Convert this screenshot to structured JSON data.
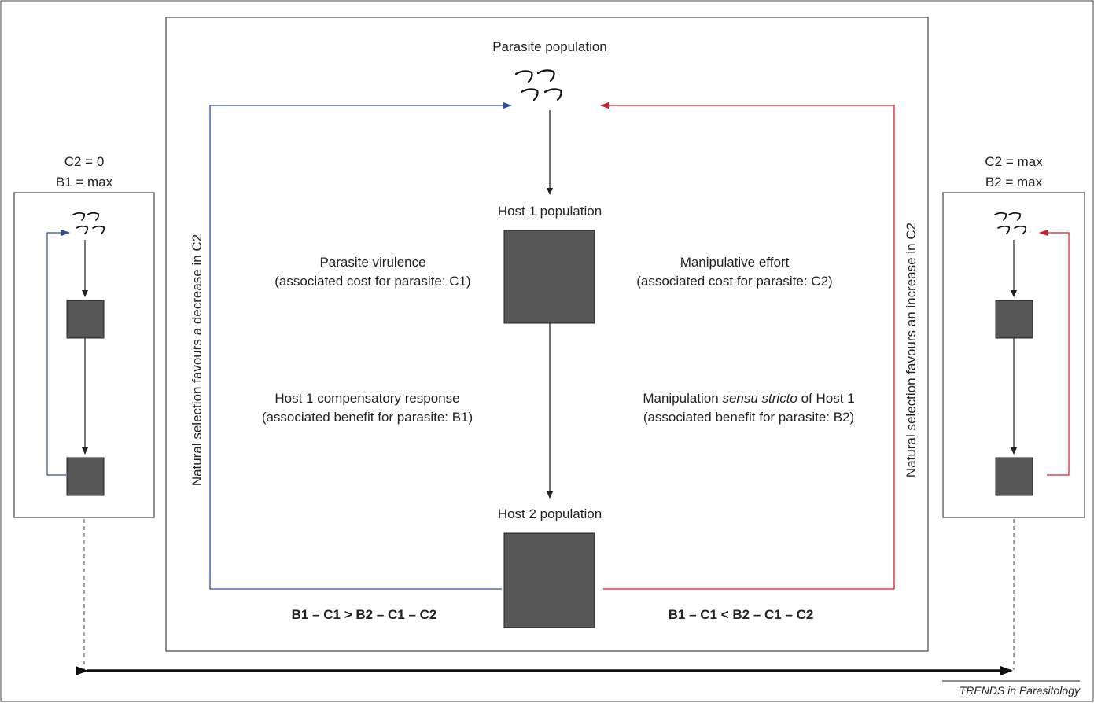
{
  "center": {
    "parasite_label": "Parasite population",
    "host1_label": "Host 1 population",
    "host2_label": "Host 2 population",
    "virulence_line1": "Parasite virulence",
    "virulence_line2": "(associated cost for parasite: C1)",
    "manip_effort_line1": "Manipulative effort",
    "manip_effort_line2": "(associated cost for parasite: C2)",
    "compensatory_line1": "Host 1 compensatory response",
    "compensatory_line2": "(associated benefit for parasite: B1)",
    "manip_ss_pre": "Manipulation ",
    "manip_ss_italic": "sensu stricto",
    "manip_ss_post": " of Host 1",
    "manip_ss_line2": "(associated benefit for parasite: B2)",
    "left_vertical": "Natural selection favours a decrease in C2",
    "right_vertical": "Natural selection favours an increase in C2",
    "formula_left": "B1 – C1 > B2 – C1 – C2",
    "formula_right": "B1 – C1 < B2 – C1 – C2"
  },
  "left_panel": {
    "line1": "C2 = 0",
    "line2": "B1 = max"
  },
  "right_panel": {
    "line1": "C2 = max",
    "line2": "B2 = max"
  },
  "footer": {
    "credit": "TRENDS in Parasitology"
  },
  "colors": {
    "blue": "#2e4d9c",
    "red": "#cc1f2d",
    "box": "#575757"
  }
}
